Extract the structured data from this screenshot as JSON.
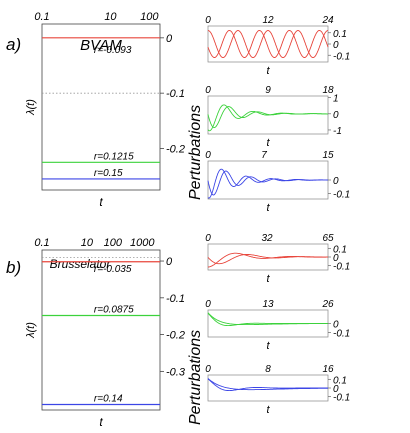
{
  "chart_data": [
    {
      "type": "line",
      "panel_label": "a)",
      "title": "BVAM",
      "xlabel": "t",
      "ylabel": "λ(t)",
      "x_scale": "log",
      "x_ticks": [
        "0.1",
        "10",
        "100"
      ],
      "ylim": [
        -0.275,
        0.025
      ],
      "y_ticks": [
        "0",
        "-0.1",
        "-0.2"
      ],
      "zero_reference": "dotted",
      "series": [
        {
          "name": "r=-0.093",
          "value": 0.0,
          "color": "#e8463c"
        },
        {
          "name": "r=0.1215",
          "value": -0.225,
          "color": "#3cd23c"
        },
        {
          "name": "r=0.15",
          "value": -0.255,
          "color": "#3c46e6"
        }
      ]
    },
    {
      "type": "line",
      "panel_label": "b)",
      "title": "Brusselator",
      "xlabel": "t",
      "ylabel": "λ(t)",
      "x_scale": "log",
      "x_ticks": [
        "0.1",
        "10",
        "100",
        "1000"
      ],
      "ylim": [
        -0.405,
        0.03
      ],
      "y_ticks": [
        "0",
        "-0.1",
        "-0.2",
        "-0.3"
      ],
      "zero_reference": "dotted",
      "series": [
        {
          "name": "r=-0.035",
          "value": -0.002,
          "color": "#e8463c"
        },
        {
          "name": "r=0.0875",
          "value": -0.148,
          "color": "#3cd23c"
        },
        {
          "name": "r=0.14",
          "value": -0.39,
          "color": "#3c46e6"
        }
      ]
    }
  ],
  "perturbations": {
    "ylabel": "Perturbations",
    "xlabel": "t",
    "panels": [
      {
        "color": "#e8463c",
        "x_ticks": [
          "0",
          "12",
          "24"
        ],
        "y_ticks": [
          "0.1",
          "0",
          "-0.1"
        ],
        "ylim": [
          -0.16,
          0.16
        ],
        "xmax": 24,
        "kind": "sustained",
        "amplitude": 0.12,
        "damping": 0.0,
        "period": 6.0,
        "phase": 1.2
      },
      {
        "color": "#3cd23c",
        "x_ticks": [
          "0",
          "9",
          "18"
        ],
        "y_ticks": [
          "1",
          "0",
          "-1"
        ],
        "ylim": [
          -1.25,
          1.1
        ],
        "xmax": 18,
        "kind": "damped",
        "amplitude": 1.15,
        "damping": 0.36,
        "period": 3.6,
        "phase": 1.0
      },
      {
        "color": "#3c46e6",
        "x_ticks": [
          "0",
          "7",
          "15"
        ],
        "y_ticks": [
          "0",
          "-0.1"
        ],
        "ylim": [
          -0.14,
          0.14
        ],
        "xmax": 15,
        "kind": "damped",
        "amplitude": 0.14,
        "damping": 0.33,
        "period": 3.1,
        "phase": 1.15
      },
      {
        "color": "#e8463c",
        "x_ticks": [
          "0",
          "32",
          "65"
        ],
        "y_ticks": [
          "0.1",
          "0",
          "-0.1"
        ],
        "ylim": [
          -0.15,
          0.15
        ],
        "xmax": 65,
        "kind": "damped",
        "amplitude": 0.12,
        "damping": 0.28,
        "period": 7.0,
        "phase": 1.3
      },
      {
        "color": "#3cd23c",
        "x_ticks": [
          "0",
          "13",
          "26"
        ],
        "y_ticks": [
          "0",
          "-0.1"
        ],
        "ylim": [
          -0.15,
          0.15
        ],
        "xmax": 26,
        "kind": "decay",
        "amplitude": 0.12,
        "damping": 0.45,
        "period": 0,
        "phase": 0
      },
      {
        "color": "#3c46e6",
        "x_ticks": [
          "0",
          "8",
          "16"
        ],
        "y_ticks": [
          "0.1",
          "0",
          "-0.1"
        ],
        "ylim": [
          -0.15,
          0.15
        ],
        "xmax": 16,
        "kind": "decay",
        "amplitude": 0.11,
        "damping": 0.35,
        "period": 0,
        "phase": 0
      }
    ]
  }
}
